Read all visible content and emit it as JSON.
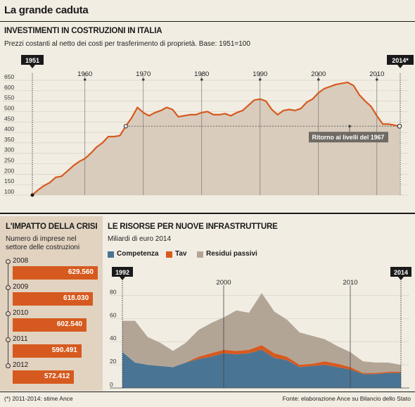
{
  "header": {
    "title": "La grande caduta"
  },
  "chart_data": [
    {
      "type": "area",
      "title": "INVESTIMENTI IN COSTRUZIONI IN ITALIA",
      "subtitle": "Prezzi costanti al netto dei costi per trasferimento di proprietà. Base: 1951=100",
      "x": [
        1951,
        1952,
        1953,
        1954,
        1955,
        1956,
        1957,
        1958,
        1959,
        1960,
        1961,
        1962,
        1963,
        1964,
        1965,
        1966,
        1967,
        1968,
        1969,
        1970,
        1971,
        1972,
        1973,
        1974,
        1975,
        1976,
        1977,
        1978,
        1979,
        1980,
        1981,
        1982,
        1983,
        1984,
        1985,
        1986,
        1987,
        1988,
        1989,
        1990,
        1991,
        1992,
        1993,
        1994,
        1995,
        1996,
        1997,
        1998,
        1999,
        2000,
        2001,
        2002,
        2003,
        2004,
        2005,
        2006,
        2007,
        2008,
        2009,
        2010,
        2011,
        2012,
        2013,
        2014
      ],
      "values": [
        100,
        125,
        145,
        160,
        185,
        190,
        215,
        240,
        260,
        275,
        300,
        330,
        350,
        380,
        380,
        385,
        430,
        470,
        520,
        495,
        480,
        495,
        505,
        520,
        510,
        475,
        480,
        485,
        485,
        495,
        500,
        485,
        485,
        490,
        480,
        495,
        505,
        530,
        555,
        560,
        550,
        510,
        485,
        505,
        510,
        505,
        515,
        545,
        560,
        590,
        610,
        620,
        630,
        635,
        640,
        625,
        580,
        550,
        525,
        480,
        440,
        440,
        null,
        null
      ],
      "x_ticks": [
        "1951",
        "1960",
        "1970",
        "1980",
        "1990",
        "2000",
        "2010",
        "2014*"
      ],
      "y_ticks": [
        100,
        150,
        200,
        250,
        300,
        350,
        400,
        450,
        500,
        550,
        600,
        650
      ],
      "ylim": [
        100,
        650
      ],
      "reference_level": 430,
      "annotation": "Ritorno ai livelli del 1967"
    },
    {
      "type": "bar",
      "title": "L'IMPATTO DELLA CRISI",
      "subtitle": "Numero di imprese nel settore delle costruzioni",
      "categories": [
        "2008",
        "2009",
        "2010",
        "2011",
        "2012"
      ],
      "values": [
        629560,
        618030,
        602540,
        590491,
        572412
      ],
      "labels": [
        "629.560",
        "618.030",
        "602.540",
        "590.491",
        "572.412"
      ]
    },
    {
      "type": "area",
      "title": "LE RISORSE PER NUOVE INFRASTRUTTURE",
      "subtitle": "Miliardi di euro 2014",
      "x": [
        1992,
        1993,
        1994,
        1995,
        1996,
        1997,
        1998,
        1999,
        2000,
        2001,
        2002,
        2003,
        2004,
        2005,
        2006,
        2007,
        2008,
        2009,
        2010,
        2011,
        2012,
        2013,
        2014
      ],
      "series": [
        {
          "name": "Competenza",
          "color": "#4a7494",
          "values": [
            31,
            22,
            20,
            19,
            18,
            22,
            25,
            27,
            30,
            29,
            30,
            33,
            26,
            24,
            18,
            19,
            20,
            18,
            16,
            12,
            12,
            13,
            13
          ]
        },
        {
          "name": "Tav",
          "color": "#d65a1f",
          "values": [
            0,
            0,
            0,
            0,
            0,
            0,
            2,
            3,
            3,
            3,
            3,
            4,
            4,
            3,
            2,
            2,
            3,
            3,
            2,
            1,
            1,
            1,
            1
          ]
        },
        {
          "name": "Residui passivi",
          "color": "#b3a596",
          "values": [
            27,
            36,
            24,
            20,
            14,
            17,
            23,
            26,
            28,
            35,
            32,
            45,
            36,
            32,
            28,
            24,
            19,
            15,
            13,
            10,
            9,
            8,
            6
          ]
        }
      ],
      "x_ticks": [
        "1992",
        "2000",
        "2010",
        "2014"
      ],
      "y_ticks": [
        0,
        20,
        40,
        60,
        80
      ],
      "ylim": [
        0,
        90
      ]
    }
  ],
  "footer": {
    "note": "(*) 2011-2014: stime Ance",
    "source": "Fonte: elaborazione Ance su Bilancio dello Stato"
  }
}
